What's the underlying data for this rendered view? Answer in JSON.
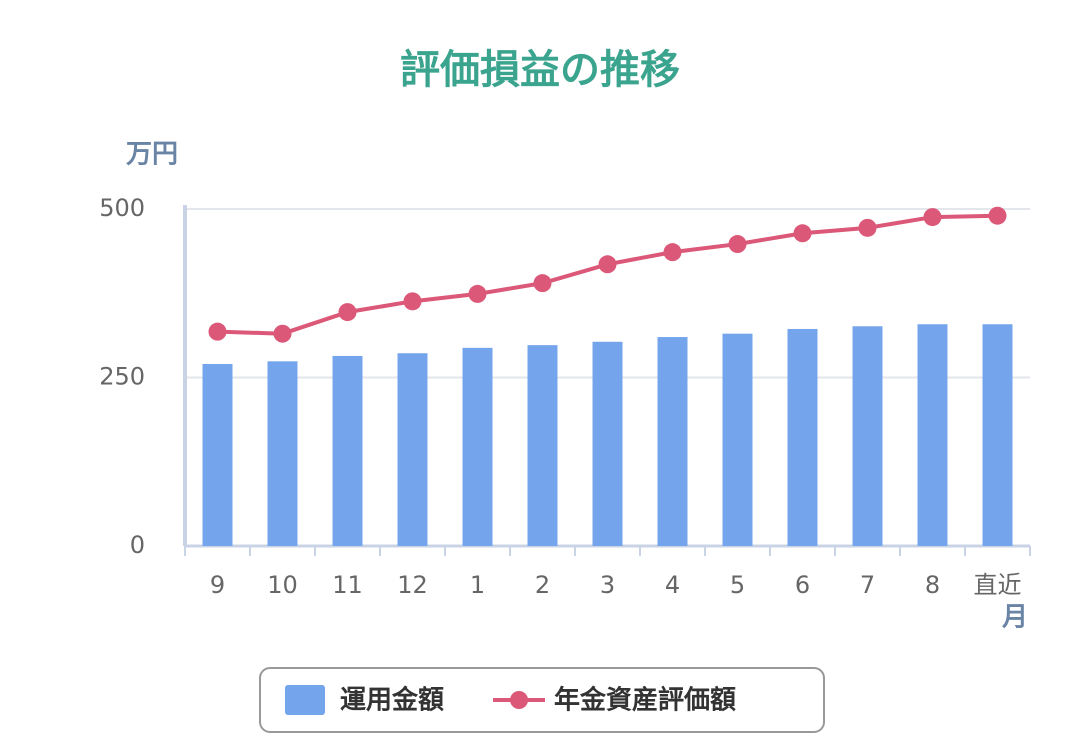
{
  "chart_data": {
    "type": "bar_line",
    "title": "評価損益の推移",
    "y_label": "万円",
    "x_label": "月",
    "categories": [
      "9",
      "10",
      "11",
      "12",
      "1",
      "2",
      "3",
      "4",
      "5",
      "6",
      "7",
      "8",
      "直近"
    ],
    "series": [
      {
        "name": "運用金額",
        "type": "bar",
        "color": "#73a4ec",
        "values": [
          270,
          274,
          282,
          286,
          294,
          298,
          303,
          310,
          315,
          322,
          326,
          329,
          329
        ]
      },
      {
        "name": "年金資産評価額",
        "type": "line",
        "color": "#dc5878",
        "values": [
          318,
          315,
          347,
          363,
          374,
          390,
          418,
          436,
          448,
          464,
          472,
          488,
          490
        ]
      }
    ],
    "ylim": [
      0,
      500
    ],
    "yticks": [
      0,
      250,
      500
    ],
    "grid": true
  }
}
